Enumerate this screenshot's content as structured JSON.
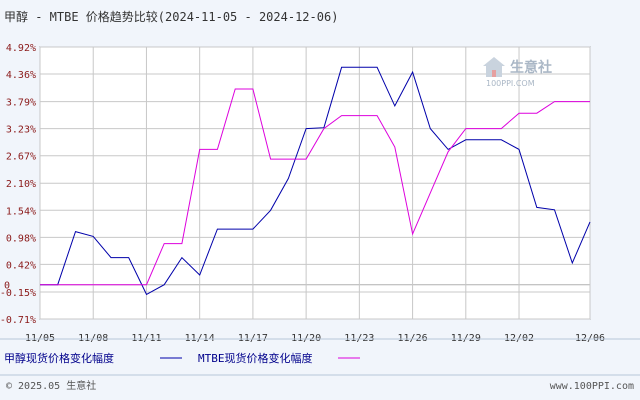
{
  "header": {
    "title": "甲醇 - MTBE 价格趋势比较(2024-11-05 - 2024-12-06)"
  },
  "watermark": {
    "brand": "生意社",
    "url": "100PPI.COM"
  },
  "legend": [
    {
      "label": "甲醇现货价格变化幅度",
      "color": "#0000aa"
    },
    {
      "label": "MTBE现货价格变化幅度",
      "color": "#dd00dd"
    }
  ],
  "footer": {
    "left": "© 2025.05 生意社",
    "right": "www.100PPI.com"
  },
  "chart_data": {
    "type": "line",
    "title": "甲醇 - MTBE 价格趋势比较(2024-11-05 - 2024-12-06)",
    "xlabel": "",
    "ylabel": "",
    "x": [
      "11/05",
      "11/06",
      "11/07",
      "11/08",
      "11/09",
      "11/10",
      "11/11",
      "11/12",
      "11/13",
      "11/14",
      "11/15",
      "11/16",
      "11/17",
      "11/18",
      "11/19",
      "11/20",
      "11/21",
      "11/22",
      "11/23",
      "11/24",
      "11/25",
      "11/26",
      "11/27",
      "11/28",
      "11/29",
      "11/30",
      "12/01",
      "12/02",
      "12/03",
      "12/04",
      "12/05",
      "12/06"
    ],
    "x_tick_labels": [
      "11/05",
      "11/08",
      "11/11",
      "11/14",
      "11/17",
      "11/20",
      "11/23",
      "11/26",
      "11/29",
      "12/02",
      "12/06"
    ],
    "y_tick_labels": [
      "4.92%",
      "4.36%",
      "3.79%",
      "3.23%",
      "2.67%",
      "2.10%",
      "1.54%",
      "0.98%",
      "0.42%",
      "-0.15%",
      "-0.71%"
    ],
    "y_tick_values": [
      4.92,
      4.36,
      3.79,
      3.23,
      2.67,
      2.1,
      1.54,
      0.98,
      0.42,
      -0.15,
      -0.71
    ],
    "zero_label": "0",
    "ylim": [
      -0.71,
      4.92
    ],
    "grid": true,
    "legend_position": "bottom-left",
    "series": [
      {
        "name": "甲醇现货价格变化幅度",
        "color": "#0000aa",
        "values": [
          0,
          0,
          1.1,
          1.0,
          0.56,
          0.56,
          -0.2,
          0,
          0.56,
          0.2,
          1.15,
          1.15,
          1.15,
          1.54,
          2.2,
          3.23,
          3.25,
          4.5,
          4.5,
          4.5,
          3.7,
          4.4,
          3.23,
          2.8,
          3.0,
          3.0,
          3.0,
          2.8,
          1.6,
          1.55,
          0.45,
          1.3
        ]
      },
      {
        "name": "MTBE现货价格变化幅度",
        "color": "#dd00dd",
        "values": [
          0,
          0,
          0,
          0,
          0,
          0,
          0,
          0.85,
          0.85,
          2.8,
          2.8,
          4.05,
          4.05,
          2.6,
          2.6,
          2.6,
          3.23,
          3.5,
          3.5,
          3.5,
          2.85,
          1.05,
          1.9,
          2.75,
          3.23,
          3.23,
          3.23,
          3.55,
          3.55,
          3.79,
          3.79,
          3.79
        ]
      }
    ]
  }
}
